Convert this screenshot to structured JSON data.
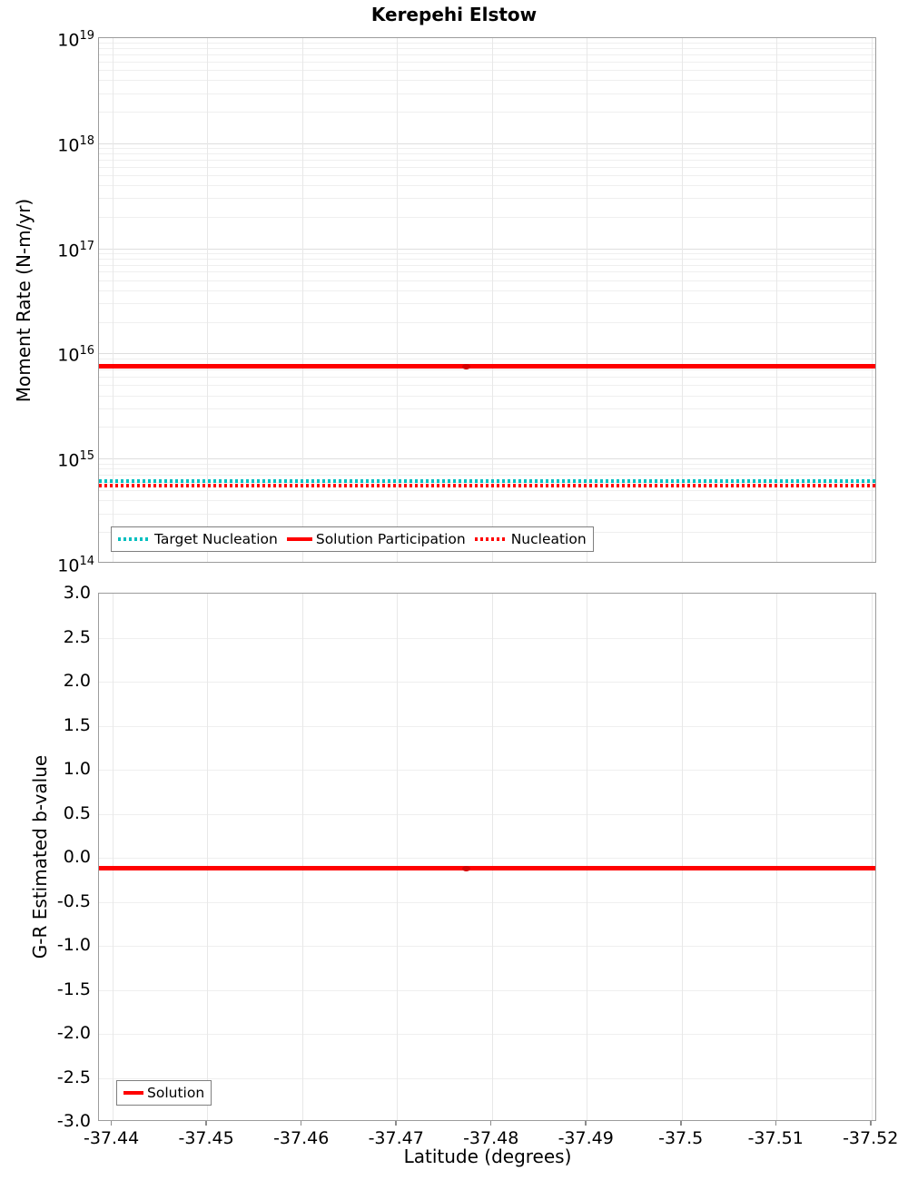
{
  "title": "Kerepehi Elstow",
  "colors": {
    "red": "#ff0000",
    "red_marker": "#d40000",
    "teal": "#00bfbf",
    "axis_border": "#9c9c9c",
    "grid_major": "#dedede",
    "grid_minor": "#efefef",
    "grid_vertical": "#e8e8e8"
  },
  "xaxis": {
    "label": "Latitude (degrees)",
    "xlim": [
      -37.4386,
      -37.5206
    ],
    "xticks": [
      -37.44,
      -37.45,
      -37.46,
      -37.47,
      -37.48,
      -37.49,
      -37.5,
      -37.51,
      -37.52
    ],
    "xtick_labels": [
      "-37.44",
      "-37.45",
      "-37.46",
      "-37.47",
      "-37.48",
      "-37.49",
      "-37.5",
      "-37.51",
      "-37.52"
    ]
  },
  "chart_data": [
    {
      "type": "line",
      "title": "Kerepehi Elstow",
      "ylabel": "Moment Rate (N-m/yr)",
      "yscale": "log",
      "ylim": [
        100000000000000.0,
        1e+19
      ],
      "ytick_exponents": [
        19,
        18,
        17,
        16,
        15,
        14
      ],
      "xlabel": "",
      "xlim": [
        -37.4386,
        -37.5206
      ],
      "xticks": [
        -37.44,
        -37.45,
        -37.46,
        -37.47,
        -37.48,
        -37.49,
        -37.5,
        -37.51,
        -37.52
      ],
      "grid": true,
      "legend_position": "lower left",
      "series": [
        {
          "name": "Target Nucleation",
          "color": "#00bfbf",
          "style": "dotted",
          "value": 610000000000000.0
        },
        {
          "name": "Solution Participation",
          "color": "#ff0000",
          "style": "solid",
          "value": 7500000000000000.0,
          "marker_x": -37.4773
        },
        {
          "name": "Nucleation",
          "color": "#ff0000",
          "style": "dotted",
          "value": 550000000000000.0
        }
      ]
    },
    {
      "type": "line",
      "title": "",
      "ylabel": "G-R Estimated b-value",
      "yscale": "linear",
      "ylim": [
        -3.0,
        3.0
      ],
      "ytick_step": 0.5,
      "ytick_labels": [
        "3.0",
        "2.5",
        "2.0",
        "1.5",
        "1.0",
        "0.5",
        "0.0",
        "-0.5",
        "-1.0",
        "-1.5",
        "-2.0",
        "-2.5",
        "-3.0"
      ],
      "xlabel": "Latitude (degrees)",
      "xlim": [
        -37.4386,
        -37.5206
      ],
      "xticks": [
        -37.44,
        -37.45,
        -37.46,
        -37.47,
        -37.48,
        -37.49,
        -37.5,
        -37.51,
        -37.52
      ],
      "grid": true,
      "legend_position": "lower left",
      "series": [
        {
          "name": "Solution",
          "color": "#ff0000",
          "style": "solid",
          "value": -0.12,
          "marker_x": -37.4773
        }
      ]
    }
  ]
}
